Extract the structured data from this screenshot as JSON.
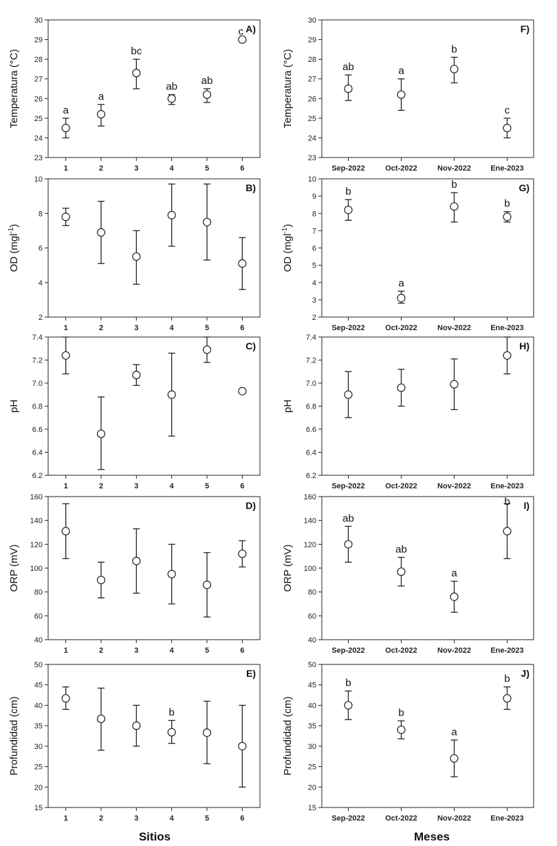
{
  "figure": {
    "left_xlabel": "Sitios",
    "right_xlabel": "Meses"
  },
  "chart_data": [
    {
      "id": "A",
      "type": "scatter",
      "panel_label": "A)",
      "ylabel": "Temperatura (°C)",
      "ylim": [
        23,
        30
      ],
      "yticks": [
        "23",
        "24",
        "25",
        "26",
        "27",
        "28",
        "29",
        "30"
      ],
      "categories": [
        "1",
        "2",
        "3",
        "4",
        "5",
        "6"
      ],
      "values": [
        24.5,
        25.2,
        27.3,
        26.0,
        26.2,
        29.0
      ],
      "err_low": [
        24.0,
        24.6,
        26.5,
        25.7,
        25.8,
        29.0
      ],
      "err_high": [
        25.0,
        25.7,
        28.0,
        26.2,
        26.5,
        29.0
      ],
      "letters": [
        "a",
        "a",
        "bc",
        "ab",
        "ab",
        "c"
      ]
    },
    {
      "id": "B",
      "type": "scatter",
      "panel_label": "B)",
      "ylabel": "OD (mgl-1)",
      "ylim": [
        2,
        10
      ],
      "yticks": [
        "2",
        "4",
        "6",
        "8",
        "10"
      ],
      "categories": [
        "1",
        "2",
        "3",
        "4",
        "5",
        "6"
      ],
      "values": [
        7.8,
        6.9,
        5.5,
        7.9,
        7.5,
        5.1
      ],
      "err_low": [
        7.3,
        5.1,
        3.9,
        6.1,
        5.3,
        3.6
      ],
      "err_high": [
        8.3,
        8.7,
        7.0,
        9.7,
        9.7,
        6.6
      ],
      "letters": []
    },
    {
      "id": "C",
      "type": "scatter",
      "panel_label": "C)",
      "ylabel": "pH",
      "ylim": [
        6.2,
        7.4
      ],
      "yticks": [
        "6.2",
        "6.4",
        "6.6",
        "6.8",
        "7.0",
        "7.2",
        "7.4"
      ],
      "categories": [
        "1",
        "2",
        "3",
        "4",
        "5",
        "6"
      ],
      "values": [
        7.24,
        6.56,
        7.07,
        6.9,
        7.29,
        6.93
      ],
      "err_low": [
        7.08,
        6.25,
        6.98,
        6.54,
        7.18,
        6.93
      ],
      "err_high": [
        7.4,
        6.88,
        7.16,
        7.26,
        7.4,
        6.93
      ],
      "letters": []
    },
    {
      "id": "D",
      "type": "scatter",
      "panel_label": "D)",
      "ylabel": "ORP (mV)",
      "ylim": [
        40,
        160
      ],
      "yticks": [
        "40",
        "60",
        "80",
        "100",
        "120",
        "140",
        "160"
      ],
      "categories": [
        "1",
        "2",
        "3",
        "4",
        "5",
        "6"
      ],
      "values": [
        131,
        90,
        106,
        95,
        86,
        112
      ],
      "err_low": [
        108,
        75,
        79,
        70,
        59,
        101
      ],
      "err_high": [
        154,
        105,
        133,
        120,
        113,
        123
      ],
      "letters": []
    },
    {
      "id": "E",
      "type": "scatter",
      "panel_label": "E)",
      "ylabel": "Profundidad (cm)",
      "ylim": [
        15,
        50
      ],
      "yticks": [
        "15",
        "20",
        "25",
        "30",
        "35",
        "40",
        "45",
        "50"
      ],
      "categories": [
        "1",
        "2",
        "3",
        "4",
        "5",
        "6"
      ],
      "values": [
        41.7,
        36.7,
        35.0,
        33.4,
        33.3,
        30.0
      ],
      "err_low": [
        39.0,
        29.0,
        30.0,
        30.7,
        25.7,
        20.0
      ],
      "err_high": [
        44.5,
        44.2,
        40.0,
        36.3,
        41.0,
        40.0
      ],
      "letters": [
        "",
        "",
        "",
        "b",
        "",
        ""
      ]
    },
    {
      "id": "F",
      "type": "scatter",
      "panel_label": "F)",
      "ylabel": "Temperatura (°C)",
      "ylim": [
        23,
        30
      ],
      "yticks": [
        "23",
        "24",
        "25",
        "26",
        "27",
        "28",
        "29",
        "30"
      ],
      "categories": [
        "Sep-2022",
        "Oct-2022",
        "Nov-2022",
        "Ene-2023"
      ],
      "values": [
        26.5,
        26.2,
        27.5,
        24.5
      ],
      "err_low": [
        25.9,
        25.4,
        26.8,
        24.0
      ],
      "err_high": [
        27.2,
        27.0,
        28.1,
        25.0
      ],
      "letters": [
        "ab",
        "a",
        "b",
        "c"
      ]
    },
    {
      "id": "G",
      "type": "scatter",
      "panel_label": "G)",
      "ylabel": "OD (mgl-1)",
      "ylim": [
        2,
        10
      ],
      "yticks": [
        "2",
        "3",
        "4",
        "5",
        "6",
        "7",
        "8",
        "9",
        "10"
      ],
      "categories": [
        "Sep-2022",
        "Oct-2022",
        "Nov-2022",
        "Ene-2023"
      ],
      "values": [
        8.2,
        3.1,
        8.4,
        7.8
      ],
      "err_low": [
        7.6,
        2.8,
        7.5,
        7.5
      ],
      "err_high": [
        8.8,
        3.5,
        9.2,
        8.1
      ],
      "letters": [
        "b",
        "a",
        "b",
        "b"
      ]
    },
    {
      "id": "H",
      "type": "scatter",
      "panel_label": "H)",
      "ylabel": "pH",
      "ylim": [
        6.2,
        7.4
      ],
      "yticks": [
        "6.2",
        "6.4",
        "6.6",
        "6.8",
        "7.0",
        "7.2",
        "7.4"
      ],
      "categories": [
        "Sep-2022",
        "Oct-2022",
        "Nov-2022",
        "Ene-2023"
      ],
      "values": [
        6.9,
        6.96,
        6.99,
        7.24
      ],
      "err_low": [
        6.7,
        6.8,
        6.77,
        7.08
      ],
      "err_high": [
        7.1,
        7.12,
        7.21,
        7.4
      ],
      "letters": []
    },
    {
      "id": "I",
      "type": "scatter",
      "panel_label": "I)",
      "ylabel": "ORP (mV)",
      "ylim": [
        40,
        160
      ],
      "yticks": [
        "40",
        "60",
        "80",
        "100",
        "120",
        "140",
        "160"
      ],
      "categories": [
        "Sep-2022",
        "Oct-2022",
        "Nov-2022",
        "Ene-2023"
      ],
      "values": [
        120,
        97,
        76,
        131
      ],
      "err_low": [
        105,
        85,
        63,
        108
      ],
      "err_high": [
        135,
        109,
        89,
        154
      ],
      "letters": [
        "ab",
        "ab",
        "a",
        "b"
      ]
    },
    {
      "id": "J",
      "type": "scatter",
      "panel_label": "J)",
      "ylabel": "Profundidad (cm)",
      "ylim": [
        15,
        50
      ],
      "yticks": [
        "15",
        "20",
        "25",
        "30",
        "35",
        "40",
        "45",
        "50"
      ],
      "categories": [
        "Sep-2022",
        "Oct-2022",
        "Nov-2022",
        "Ene-2023"
      ],
      "values": [
        40.0,
        34.0,
        27.0,
        41.7
      ],
      "err_low": [
        36.5,
        31.8,
        22.5,
        39.0
      ],
      "err_high": [
        43.5,
        36.2,
        31.5,
        44.5
      ],
      "letters": [
        "b",
        "b",
        "a",
        "b"
      ]
    }
  ]
}
